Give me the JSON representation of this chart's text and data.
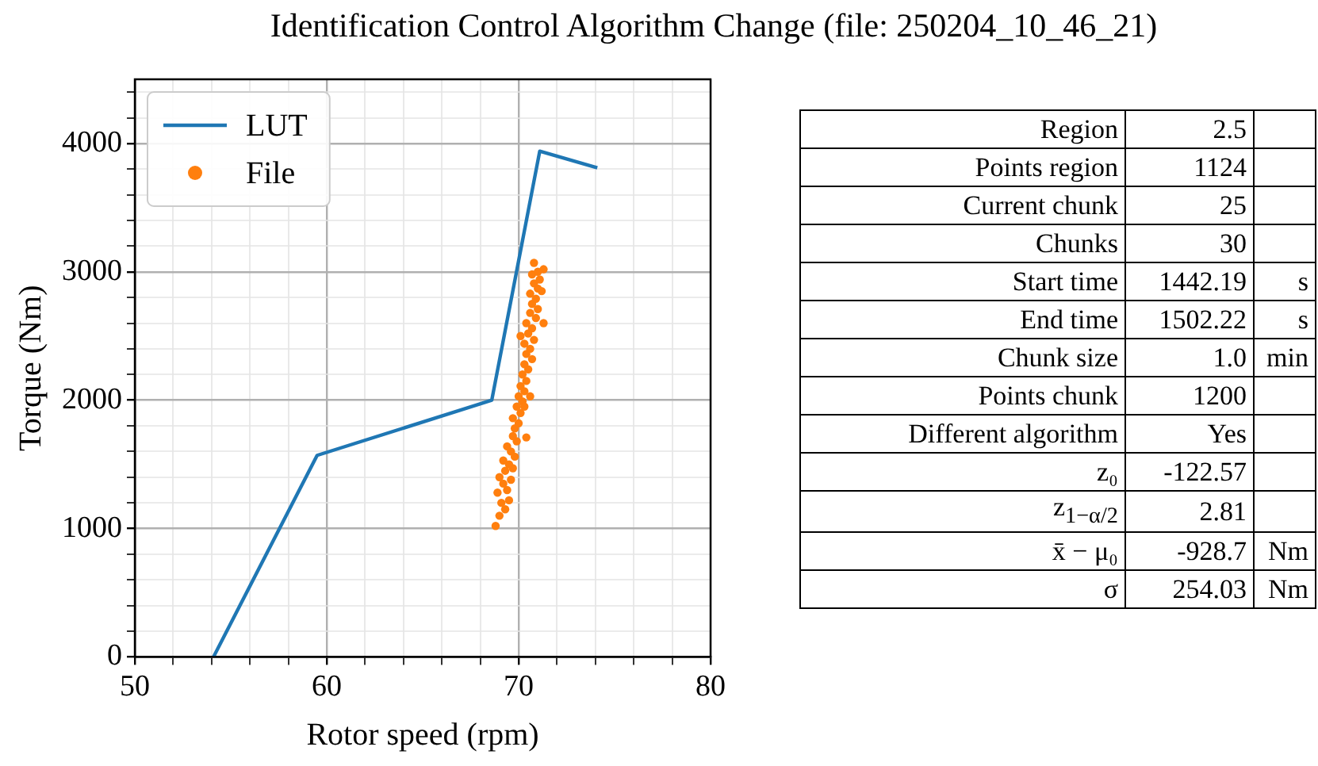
{
  "chart_data": [
    {
      "type": "line",
      "title": "Identification Control Algorithm Change (file: 250204_10_46_21)",
      "xlabel": "Rotor speed (rpm)",
      "ylabel": "Torque (Nm)",
      "xlim": [
        50,
        80
      ],
      "ylim": [
        0,
        4500
      ],
      "xticks": [
        50,
        {
          "value": 52,
          "label": null
        },
        {
          "value": 54,
          "label": null
        },
        {
          "value": 56,
          "label": null
        },
        {
          "value": 58,
          "label": null
        },
        60,
        {
          "value": 62,
          "label": null
        },
        {
          "value": 64,
          "label": null
        },
        {
          "value": 66,
          "label": null
        },
        {
          "value": 68,
          "label": null
        },
        70,
        {
          "value": 72,
          "label": null
        },
        {
          "value": 74,
          "label": null
        },
        {
          "value": 76,
          "label": null
        },
        {
          "value": 78,
          "label": null
        },
        80
      ],
      "yticks": [
        0,
        {
          "value": 200,
          "label": null
        },
        {
          "value": 400,
          "label": null
        },
        {
          "value": 600,
          "label": null
        },
        {
          "value": 800,
          "label": null
        },
        1000,
        {
          "value": 1200,
          "label": null
        },
        {
          "value": 1400,
          "label": null
        },
        {
          "value": 1600,
          "label": null
        },
        {
          "value": 1800,
          "label": null
        },
        2000,
        {
          "value": 2200,
          "label": null
        },
        {
          "value": 2400,
          "label": null
        },
        {
          "value": 2600,
          "label": null
        },
        {
          "value": 2800,
          "label": null
        },
        3000,
        {
          "value": 3200,
          "label": null
        },
        {
          "value": 3400,
          "label": null
        },
        {
          "value": 3600,
          "label": null
        },
        {
          "value": 3800,
          "label": null
        },
        4000,
        {
          "value": 4200,
          "label": null
        },
        {
          "value": 4400,
          "label": null
        }
      ],
      "grid": true,
      "legend": "top left",
      "series": [
        {
          "name": "LUT",
          "type": "line",
          "color": "#1f77b4",
          "marker": "none",
          "line_style": "solid",
          "x": [
            54.1,
            59.5,
            68.6,
            71.1,
            74.1
          ],
          "values": [
            0,
            1570,
            2000,
            3940,
            3810
          ]
        },
        {
          "name": "File",
          "type": "scatter",
          "color": "#ff7f0e",
          "marker": "circle",
          "x": [
            68.8,
            69.0,
            69.3,
            69.1,
            69.5,
            68.9,
            69.4,
            69.2,
            69.6,
            69.0,
            69.3,
            69.7,
            69.5,
            69.2,
            69.8,
            69.6,
            69.4,
            69.9,
            69.7,
            70.4,
            69.8,
            70.0,
            69.7,
            70.1,
            69.9,
            70.2,
            70.0,
            70.6,
            70.3,
            70.1,
            70.4,
            70.2,
            70.5,
            70.3,
            70.7,
            70.4,
            70.6,
            70.3,
            70.8,
            70.5,
            70.7,
            70.4,
            70.9,
            70.6,
            71.0,
            70.7,
            70.9,
            70.6,
            71.0,
            70.8,
            71.1,
            70.7,
            71.3,
            70.8,
            71.0,
            71.2,
            71.3,
            70.3,
            70.1
          ],
          "values": [
            1020,
            1100,
            1150,
            1200,
            1220,
            1280,
            1300,
            1350,
            1380,
            1400,
            1450,
            1470,
            1500,
            1530,
            1560,
            1600,
            1640,
            1680,
            1720,
            1710,
            1780,
            1820,
            1860,
            1900,
            1950,
            1990,
            2030,
            2030,
            2070,
            2110,
            2150,
            2200,
            2240,
            2280,
            2320,
            2360,
            2400,
            2440,
            2470,
            2520,
            2560,
            2600,
            2640,
            2680,
            2710,
            2750,
            2790,
            2830,
            2870,
            2910,
            2940,
            2980,
            3020,
            3070,
            3000,
            2850,
            2600,
            1950,
            2500
          ]
        }
      ]
    },
    {
      "type": "other",
      "cell_labels": [
        [
          "Region",
          "2.5",
          null
        ],
        [
          "Points region",
          "1124",
          null
        ],
        [
          "Current chunk",
          "25",
          null
        ],
        [
          "Chunks",
          "30",
          null
        ],
        [
          "Start time",
          "1442.19",
          "s"
        ],
        [
          "End time",
          "1502.22",
          "s"
        ],
        [
          "Chunk size",
          "1.0",
          "min"
        ],
        [
          "Points chunk",
          "1200",
          null
        ],
        [
          "Different algorithm",
          "Yes",
          null
        ],
        [
          "z₀",
          "-122.57",
          null
        ],
        [
          "z$_{1−α/2}$",
          "2.81",
          null
        ],
        [
          "x̄ − μ₀",
          "-928.7",
          "Nm"
        ],
        [
          "σ",
          "254.03",
          "Nm"
        ]
      ]
    }
  ]
}
